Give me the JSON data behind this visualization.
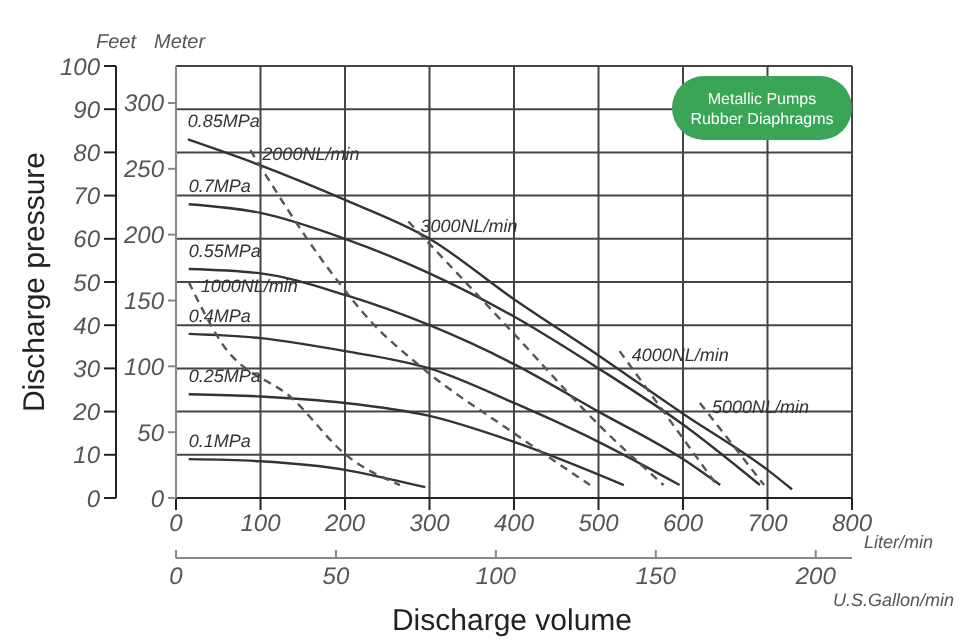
{
  "chart_data": {
    "type": "line",
    "xlabel": "Discharge volume",
    "ylabel": "Discharge pressure",
    "y2label": "Feet",
    "x2label": "U.S.Gallon/min",
    "xlim": [
      0,
      800
    ],
    "xticks": [
      0,
      100,
      200,
      300,
      400,
      500,
      600,
      700,
      800
    ],
    "ylim": [
      0,
      100
    ],
    "yticks": [
      0,
      10,
      20,
      30,
      40,
      50,
      60,
      70,
      80,
      90,
      100
    ],
    "y2lim": [
      0,
      328.08
    ],
    "y2ticks": [
      0,
      50,
      100,
      150,
      200,
      250,
      300
    ],
    "x2lim": [
      0,
      211.34
    ],
    "x2ticks": [
      0,
      50,
      100,
      150,
      200
    ],
    "grid": true,
    "legend": false,
    "marker": "none",
    "annotations": [
      "Meter",
      "Liter/min",
      "Metallic Pumps Rubber Diaphragms"
    ],
    "series": [
      {
        "name": "0.85MPa",
        "color": "#333333",
        "line_style": "solid",
        "x": [
          14,
          100,
          200,
          300,
          400,
          500,
          600,
          700,
          729
        ],
        "values": [
          83,
          77,
          69,
          60,
          46,
          33,
          19.5,
          6.5,
          2
        ]
      },
      {
        "name": "0.7MPa",
        "color": "#333333",
        "line_style": "solid",
        "x": [
          15,
          100,
          200,
          300,
          400,
          500,
          600,
          691
        ],
        "values": [
          68,
          66,
          60,
          52,
          42,
          30,
          17,
          3
        ]
      },
      {
        "name": "0.55MPa",
        "color": "#333333",
        "line_style": "solid",
        "x": [
          15,
          100,
          200,
          300,
          400,
          500,
          600,
          644
        ],
        "values": [
          53,
          52,
          47,
          40,
          31,
          20,
          9,
          3
        ]
      },
      {
        "name": "0.4MPa",
        "color": "#333333",
        "line_style": "solid",
        "x": [
          15,
          100,
          200,
          300,
          400,
          500,
          596
        ],
        "values": [
          38,
          37,
          34,
          30,
          22,
          13,
          3
        ]
      },
      {
        "name": "0.25MPa",
        "color": "#333333",
        "line_style": "solid",
        "x": [
          15,
          100,
          200,
          300,
          400,
          530
        ],
        "values": [
          24,
          23.5,
          22,
          19,
          13,
          3
        ]
      },
      {
        "name": "0.1MPa",
        "color": "#333333",
        "line_style": "solid",
        "x": [
          15,
          100,
          200,
          250,
          295
        ],
        "values": [
          9,
          8.5,
          6.5,
          4.5,
          2.5
        ]
      },
      {
        "name": "1000NL/min",
        "color": "#555555",
        "line_style": "dashed",
        "x": [
          15,
          52,
          140,
          201,
          265
        ],
        "values": [
          50,
          36.5,
          22.6,
          10,
          3
        ]
      },
      {
        "name": "2000NL/min",
        "color": "#555555",
        "line_style": "dashed",
        "x": [
          88,
          178,
          230,
          289,
          400,
          490
        ],
        "values": [
          80.5,
          53.7,
          41,
          30.5,
          15,
          3
        ]
      },
      {
        "name": "3000NL/min",
        "color": "#555555",
        "line_style": "dashed",
        "x": [
          275,
          400,
          500,
          577
        ],
        "values": [
          64,
          38,
          17,
          3
        ]
      },
      {
        "name": "4000NL/min",
        "color": "#555555",
        "line_style": "dashed",
        "x": [
          525,
          640
        ],
        "values": [
          34,
          3
        ]
      },
      {
        "name": "5000NL/min",
        "color": "#555555",
        "line_style": "dashed",
        "x": [
          620,
          696
        ],
        "values": [
          22,
          3
        ]
      }
    ]
  }
}
